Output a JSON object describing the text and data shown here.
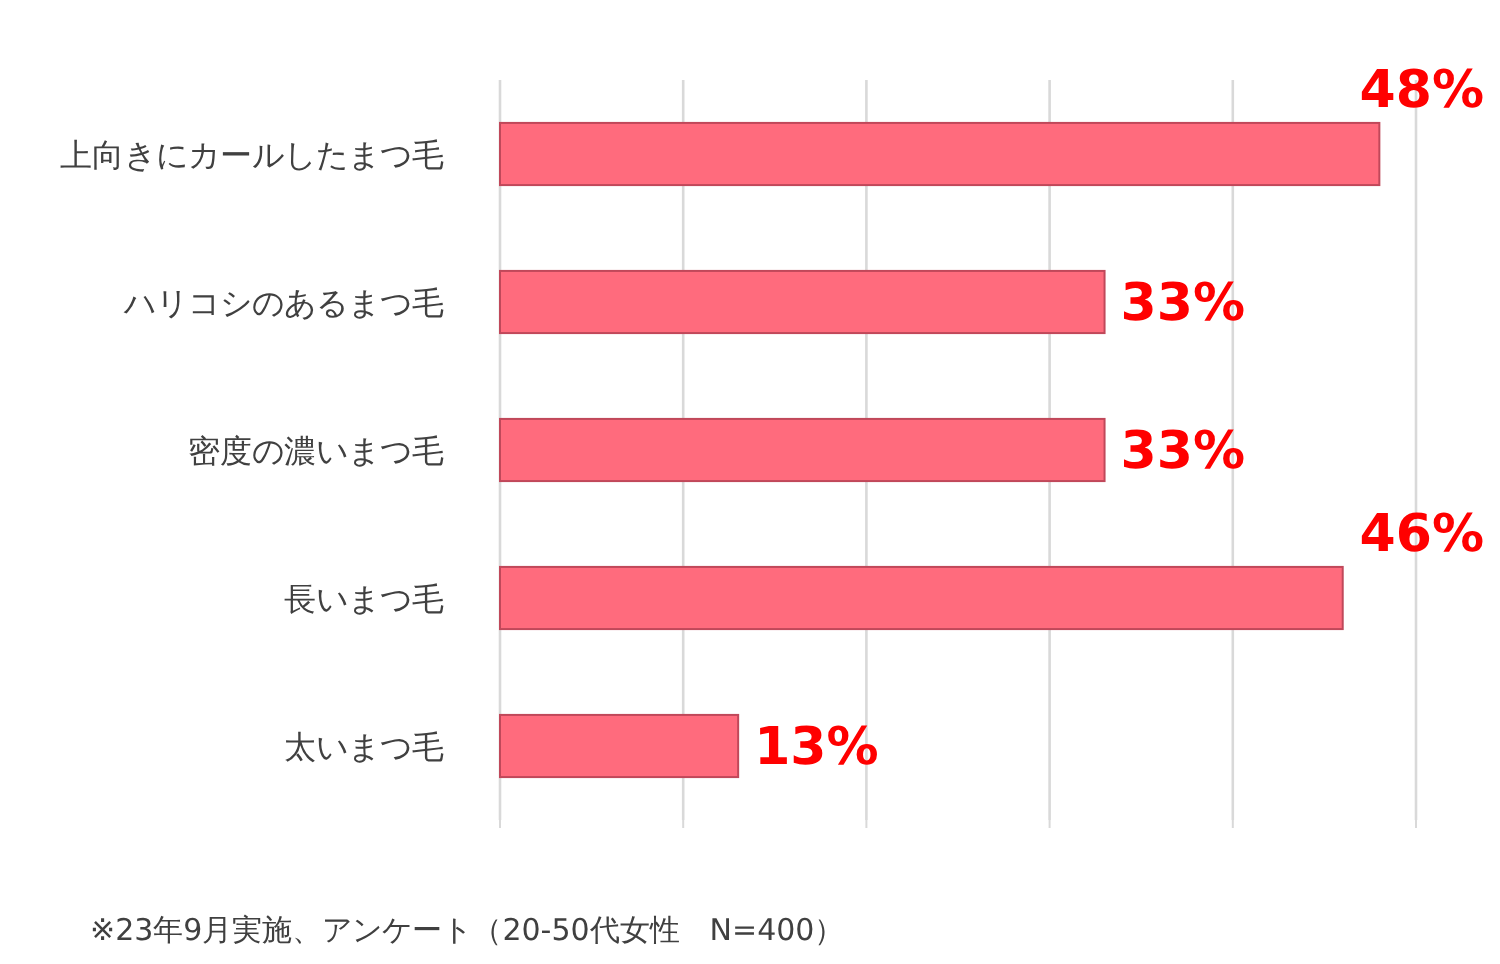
{
  "chart_data": {
    "type": "bar",
    "orientation": "horizontal",
    "categories": [
      "上向きにカールしたまつ毛",
      "ハリコシのあるまつ毛",
      "密度の濃いまつ毛",
      "長いまつ毛",
      "太いまつ毛"
    ],
    "values": [
      48,
      33,
      33,
      46,
      13
    ],
    "value_labels": [
      "48%",
      "33%",
      "33%",
      "46%",
      "13%"
    ],
    "color": "#ff6b7d",
    "xlim": [
      0,
      50
    ],
    "xticks": [
      {
        "value": 0,
        "label": null
      },
      {
        "value": 10,
        "label": null
      },
      {
        "value": 20,
        "label": null
      },
      {
        "value": 30,
        "label": null
      },
      {
        "value": 40,
        "label": null
      },
      {
        "value": 50,
        "label": null
      }
    ],
    "grid": "x",
    "annotations": [
      "※23年9月実施、アンケート（20-50代女性　N=400）"
    ]
  }
}
